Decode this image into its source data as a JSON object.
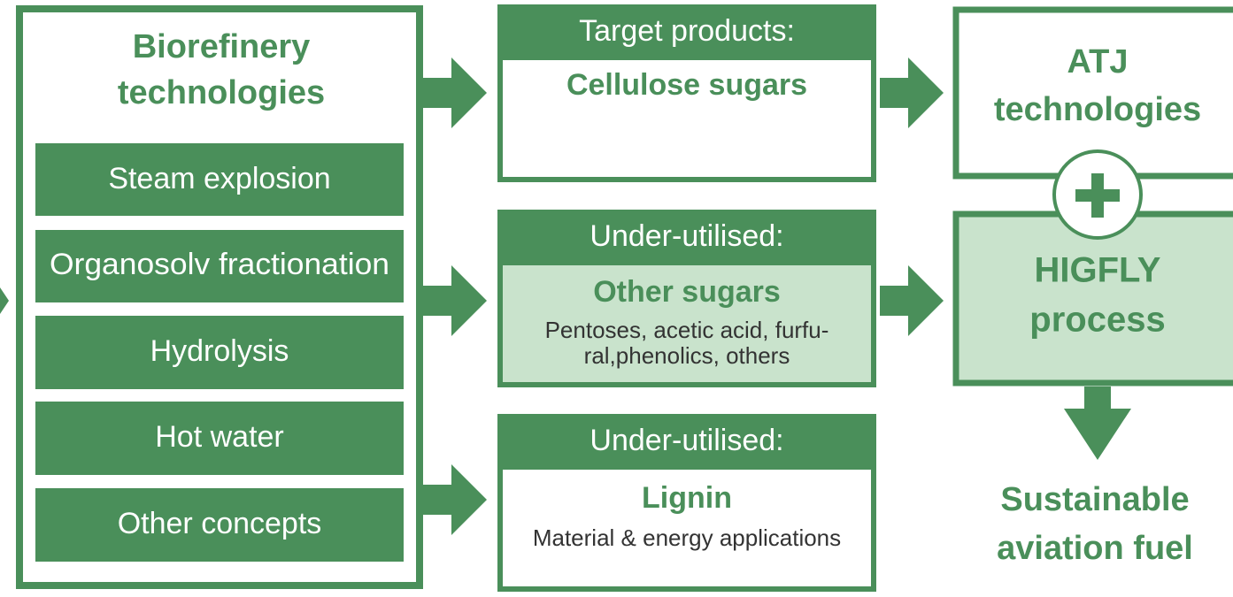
{
  "left_panel": {
    "title_lines": [
      "Biorefinery",
      "technologies"
    ],
    "items": [
      "Steam explosion",
      "Organosolv fractionation",
      "Hydrolysis",
      "Hot water",
      "Other concepts"
    ]
  },
  "outputs": [
    {
      "header": "Target products:",
      "title": "Cellulose sugars"
    },
    {
      "header": "Under-utilised:",
      "title": "Other sugars",
      "detail_lines": [
        "Pentoses, acetic acid, furfu-",
        "ral,phenolics, others"
      ]
    },
    {
      "header": "Under-utilised:",
      "title": "Lignin",
      "detail_lines": [
        "Material & energy applications"
      ]
    }
  ],
  "atj": {
    "lines": [
      "ATJ",
      "technologies"
    ]
  },
  "higfly": {
    "lines": [
      "HIGFLY",
      "process"
    ]
  },
  "product": {
    "lines": [
      "Sustainable",
      "aviation fuel"
    ]
  }
}
